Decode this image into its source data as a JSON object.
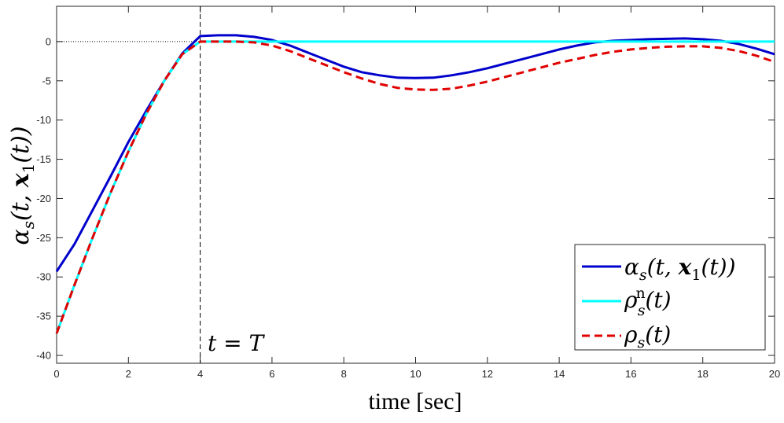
{
  "chart_data": {
    "type": "line",
    "xlabel": "time [sec]",
    "ylabel": "αs(t, x1(t))",
    "xlim": [
      0,
      20
    ],
    "ylim": [
      -41,
      4.5
    ],
    "x_ticks": [
      0,
      2,
      4,
      6,
      8,
      10,
      12,
      14,
      16,
      18,
      20
    ],
    "y_ticks": [
      0,
      -5,
      -10,
      -15,
      -20,
      -25,
      -30,
      -35,
      -40
    ],
    "grid": false,
    "zero_reference_line": {
      "y": 0,
      "style": "dotted",
      "color": "#000000"
    },
    "vline": {
      "x": 4,
      "style": "dashed",
      "color": "#000000",
      "label": "t = T"
    },
    "legend_position": "bottom-right",
    "series": [
      {
        "name": "αs(t, x1(t))",
        "legend_main": "α",
        "legend_sub": "s",
        "legend_tail": "(t, x1(t))",
        "color": "#0000cc",
        "style": "solid",
        "x": [
          0,
          0.5,
          1,
          1.5,
          2,
          2.5,
          3,
          3.5,
          4,
          4.5,
          5,
          5.5,
          6,
          6.5,
          7,
          7.5,
          8,
          8.5,
          9,
          9.5,
          10,
          10.5,
          11,
          11.5,
          12,
          12.5,
          13,
          13.5,
          14,
          14.5,
          15,
          15.5,
          16,
          16.5,
          17,
          17.5,
          18,
          18.5,
          19,
          19.5,
          20
        ],
        "y": [
          -29.3,
          -25.8,
          -21.5,
          -17.2,
          -12.8,
          -8.8,
          -5.0,
          -1.5,
          0.7,
          0.8,
          0.8,
          0.6,
          0.2,
          -0.5,
          -1.4,
          -2.3,
          -3.2,
          -3.9,
          -4.3,
          -4.6,
          -4.65,
          -4.6,
          -4.3,
          -3.9,
          -3.4,
          -2.8,
          -2.2,
          -1.6,
          -1.0,
          -0.5,
          -0.1,
          0.1,
          0.2,
          0.3,
          0.35,
          0.4,
          0.3,
          0.1,
          -0.3,
          -0.9,
          -1.6
        ]
      },
      {
        "name": "ρsn(t)",
        "legend_main": "ρ",
        "legend_sub": "s",
        "legend_sup": "n",
        "legend_tail": "(t)",
        "color": "#00ffff",
        "style": "solid",
        "x": [
          0,
          0.5,
          1,
          1.5,
          2,
          2.5,
          3,
          3.5,
          4,
          5,
          6,
          8,
          10,
          12,
          14,
          16,
          18,
          20
        ],
        "y": [
          -37.2,
          -31.0,
          -25.0,
          -19.3,
          -14.0,
          -9.2,
          -5.0,
          -1.6,
          0,
          0,
          0,
          0,
          0,
          0,
          0,
          0,
          0,
          0
        ]
      },
      {
        "name": "ρs(t)",
        "legend_main": "ρ",
        "legend_sub": "s",
        "legend_tail": "(t)",
        "color": "#e00000",
        "style": "dashed",
        "x": [
          0,
          0.5,
          1,
          1.5,
          2,
          2.5,
          3,
          3.5,
          4,
          4.5,
          5,
          5.5,
          6,
          6.5,
          7,
          7.5,
          8,
          8.5,
          9,
          9.5,
          10,
          10.5,
          11,
          11.5,
          12,
          12.5,
          13,
          13.5,
          14,
          14.5,
          15,
          15.5,
          16,
          16.5,
          17,
          17.5,
          18,
          18.5,
          19,
          19.5,
          20
        ],
        "y": [
          -37.2,
          -31.0,
          -25.0,
          -19.3,
          -14.0,
          -9.2,
          -5.0,
          -1.6,
          0,
          0,
          0,
          -0.1,
          -0.5,
          -1.2,
          -2.1,
          -3.0,
          -3.9,
          -4.7,
          -5.4,
          -5.9,
          -6.1,
          -6.15,
          -6.0,
          -5.6,
          -5.1,
          -4.5,
          -3.9,
          -3.3,
          -2.7,
          -2.2,
          -1.7,
          -1.3,
          -1.0,
          -0.8,
          -0.65,
          -0.6,
          -0.6,
          -0.8,
          -1.2,
          -1.8,
          -2.6
        ]
      }
    ]
  }
}
